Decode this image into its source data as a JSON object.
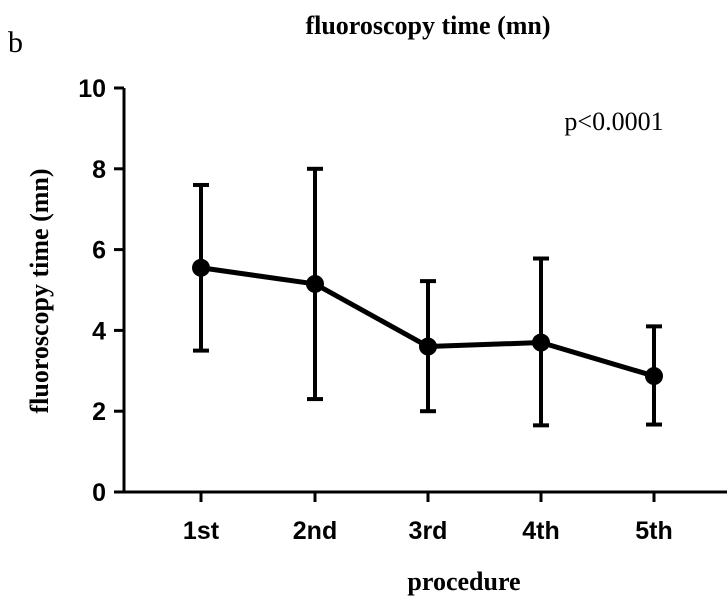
{
  "figure": {
    "panel_label": "b",
    "annotation": "p<0.0001"
  },
  "colors": {
    "ink": "#000000",
    "background": "#ffffff"
  },
  "chart_data": {
    "type": "line",
    "title": "fluoroscopy time (mn)",
    "xlabel": "procedure",
    "ylabel": "fluoroscopy time (mn)",
    "categories": [
      "1st",
      "2nd",
      "3rd",
      "4th",
      "5th"
    ],
    "series": [
      {
        "values": [
          5.55,
          5.15,
          3.6,
          3.7,
          2.87
        ],
        "error_upper": [
          7.6,
          8.0,
          5.22,
          5.78,
          4.1
        ],
        "error_lower": [
          3.5,
          2.3,
          2.0,
          1.65,
          1.67
        ]
      }
    ],
    "ylim": [
      0,
      10
    ],
    "yticks": [
      0,
      2,
      4,
      6,
      8,
      10
    ],
    "grid": false,
    "legend": "none"
  }
}
